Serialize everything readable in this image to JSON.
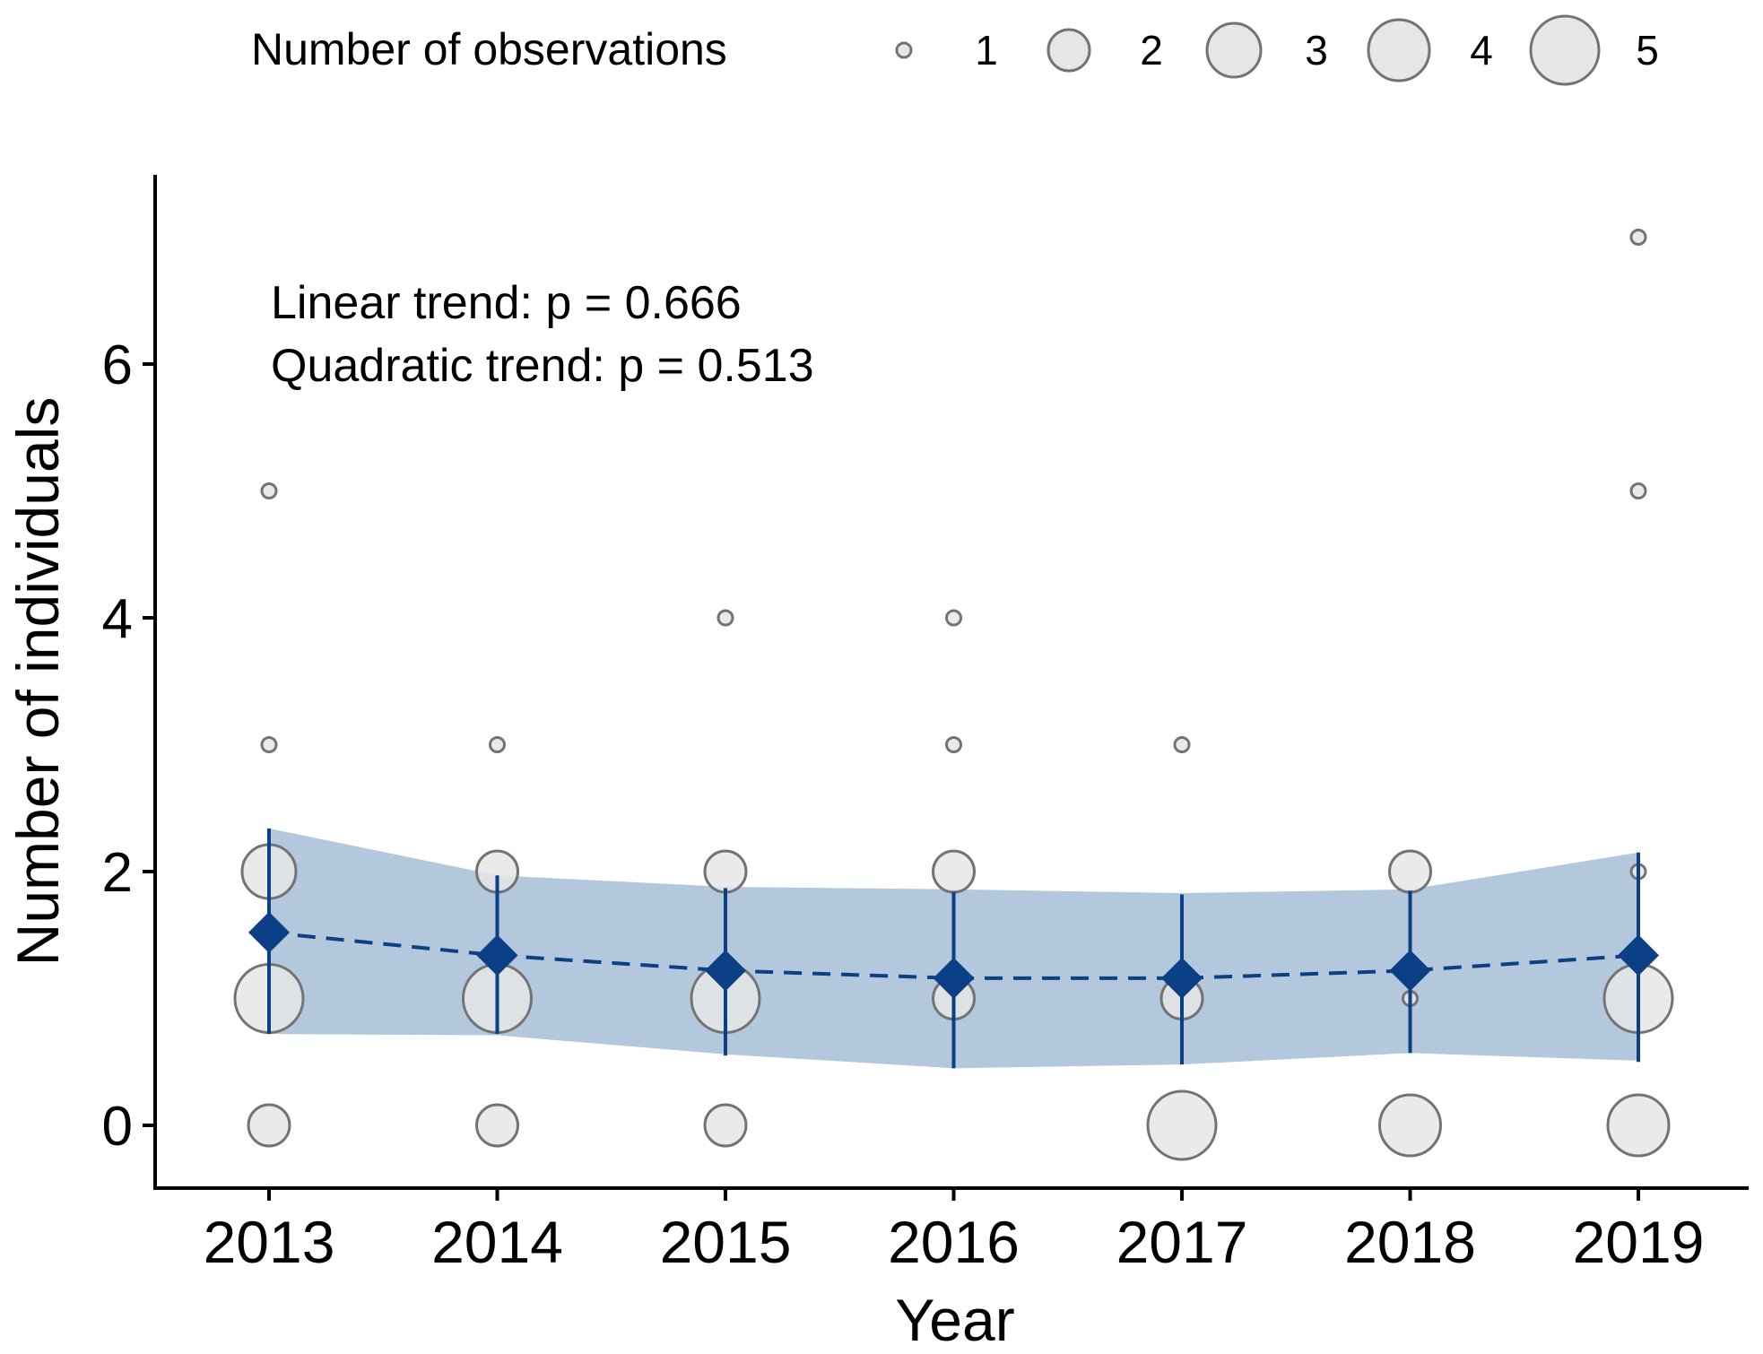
{
  "colors": {
    "band": "#b3c7dd",
    "line": "#0b3f86",
    "bubble_fill": "#e6e6e6",
    "bubble_stroke": "#737373",
    "axis": "#000000"
  },
  "chart_data": {
    "type": "scatter",
    "title": "",
    "xlabel": "Year",
    "ylabel": "Number of individuals",
    "x_categories": [
      "2013",
      "2014",
      "2015",
      "2016",
      "2017",
      "2018",
      "2019"
    ],
    "yticks": [
      "0",
      "2",
      "4",
      "6"
    ],
    "ylim": [
      -0.5,
      7.5
    ],
    "grid": false,
    "annotations": [
      "Linear trend: p = 0.666",
      "Quadratic trend: p = 0.513"
    ],
    "size_legend": {
      "title": "Number of observations",
      "position": "top",
      "levels": [
        "1",
        "2",
        "3",
        "4",
        "5"
      ]
    },
    "observations": [
      {
        "year": "2013",
        "individuals": 5,
        "count": 1
      },
      {
        "year": "2013",
        "individuals": 3,
        "count": 1
      },
      {
        "year": "2013",
        "individuals": 2,
        "count": 3
      },
      {
        "year": "2013",
        "individuals": 1,
        "count": 5
      },
      {
        "year": "2013",
        "individuals": 0,
        "count": 2
      },
      {
        "year": "2014",
        "individuals": 3,
        "count": 1
      },
      {
        "year": "2014",
        "individuals": 2,
        "count": 2
      },
      {
        "year": "2014",
        "individuals": 1,
        "count": 5
      },
      {
        "year": "2014",
        "individuals": 0,
        "count": 2
      },
      {
        "year": "2015",
        "individuals": 4,
        "count": 1
      },
      {
        "year": "2015",
        "individuals": 2,
        "count": 2
      },
      {
        "year": "2015",
        "individuals": 1,
        "count": 5
      },
      {
        "year": "2015",
        "individuals": 0,
        "count": 2
      },
      {
        "year": "2016",
        "individuals": 4,
        "count": 1
      },
      {
        "year": "2016",
        "individuals": 3,
        "count": 1
      },
      {
        "year": "2016",
        "individuals": 2,
        "count": 2
      },
      {
        "year": "2016",
        "individuals": 1,
        "count": 2
      },
      {
        "year": "2017",
        "individuals": 3,
        "count": 1
      },
      {
        "year": "2017",
        "individuals": 1,
        "count": 2
      },
      {
        "year": "2017",
        "individuals": 0,
        "count": 5
      },
      {
        "year": "2018",
        "individuals": 2,
        "count": 2
      },
      {
        "year": "2018",
        "individuals": 1,
        "count": 1
      },
      {
        "year": "2018",
        "individuals": 0,
        "count": 4
      },
      {
        "year": "2019",
        "individuals": 7,
        "count": 1
      },
      {
        "year": "2019",
        "individuals": 5,
        "count": 1
      },
      {
        "year": "2019",
        "individuals": 2,
        "count": 1
      },
      {
        "year": "2019",
        "individuals": 1,
        "count": 5
      },
      {
        "year": "2019",
        "individuals": 0,
        "count": 4
      }
    ],
    "series": [
      {
        "name": "Mean number of individuals",
        "style": "dashed-line-diamonds",
        "values": [
          1.52,
          1.34,
          1.22,
          1.16,
          1.16,
          1.22,
          1.34
        ],
        "error_lower": [
          0.72,
          0.72,
          0.55,
          0.45,
          0.48,
          0.57,
          0.5
        ],
        "error_upper": [
          2.34,
          1.97,
          1.87,
          1.84,
          1.82,
          1.85,
          2.15
        ]
      },
      {
        "name": "Confidence band",
        "style": "ribbon",
        "lower": [
          0.72,
          0.71,
          0.56,
          0.45,
          0.48,
          0.57,
          0.51
        ],
        "upper": [
          2.34,
          1.97,
          1.88,
          1.86,
          1.83,
          1.86,
          2.15
        ]
      }
    ]
  }
}
